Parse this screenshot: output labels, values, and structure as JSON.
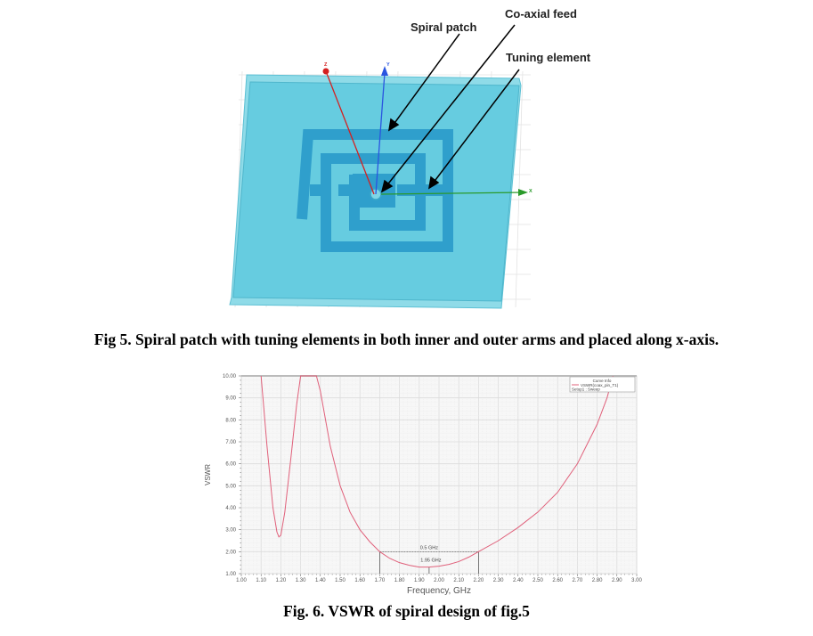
{
  "figure5": {
    "labels": {
      "spiral_patch": "Spiral patch",
      "coaxial_feed": "Co-axial feed",
      "tuning_element": "Tuning element"
    },
    "axes": {
      "x": "X",
      "y": "Y",
      "z": "Z"
    },
    "colors": {
      "substrate": "#66cce0",
      "patch": "#2f9fcc",
      "x_axis": "#2a9a2a",
      "y_axis": "#2a55e0",
      "z_axis": "#d42020"
    },
    "caption": "Fig 5. Spiral patch with tuning elements in both inner and outer arms and placed along x-axis."
  },
  "figure6": {
    "caption": "Fig. 6. VSWR of spiral design of fig.5",
    "chart_data": {
      "type": "line",
      "xlabel": "Frequency, GHz",
      "ylabel": "VSWR",
      "xlim": [
        1.0,
        3.0
      ],
      "ylim": [
        1.0,
        10.0
      ],
      "xticks": [
        "1.00",
        "1.10",
        "1.20",
        "1.30",
        "1.40",
        "1.50",
        "1.60",
        "1.70",
        "1.80",
        "1.90",
        "2.00",
        "2.10",
        "2.20",
        "2.30",
        "2.40",
        "2.50",
        "2.60",
        "2.70",
        "2.80",
        "2.90",
        "3.00"
      ],
      "yticks": [
        "1.00",
        "2.00",
        "3.00",
        "4.00",
        "5.00",
        "6.00",
        "7.00",
        "8.00",
        "9.00",
        "10.00"
      ],
      "grid": true,
      "legend": {
        "title": "Curve Info",
        "entry": "VSWR(coax_pin_T1)",
        "setup": "Setup1 : Sweep",
        "placement": "top-right"
      },
      "series": [
        {
          "name": "VSWR(coax_pin_T1)",
          "color": "#e0607a",
          "x": [
            1.1,
            1.13,
            1.16,
            1.18,
            1.19,
            1.2,
            1.22,
            1.25,
            1.28,
            1.3,
            1.38,
            1.4,
            1.45,
            1.5,
            1.55,
            1.6,
            1.65,
            1.7,
            1.75,
            1.8,
            1.85,
            1.9,
            1.95,
            2.0,
            2.05,
            2.1,
            2.15,
            2.2,
            2.3,
            2.4,
            2.5,
            2.6,
            2.7,
            2.8,
            2.85,
            2.88
          ],
          "y": [
            10.0,
            6.8,
            4.0,
            2.9,
            2.67,
            2.75,
            3.8,
            6.2,
            8.7,
            10.0,
            10.0,
            9.3,
            6.8,
            5.0,
            3.8,
            3.0,
            2.45,
            2.0,
            1.7,
            1.5,
            1.38,
            1.3,
            1.3,
            1.34,
            1.42,
            1.55,
            1.75,
            2.0,
            2.5,
            3.1,
            3.8,
            4.7,
            6.0,
            7.8,
            9.0,
            10.0
          ]
        }
      ],
      "annotations": {
        "bandwidth_label": "0.5 GHz",
        "center_label": "1.95 GHz",
        "band_start": 1.7,
        "band_end": 2.2,
        "center": 1.95,
        "vswr_level": 2.0
      }
    }
  }
}
